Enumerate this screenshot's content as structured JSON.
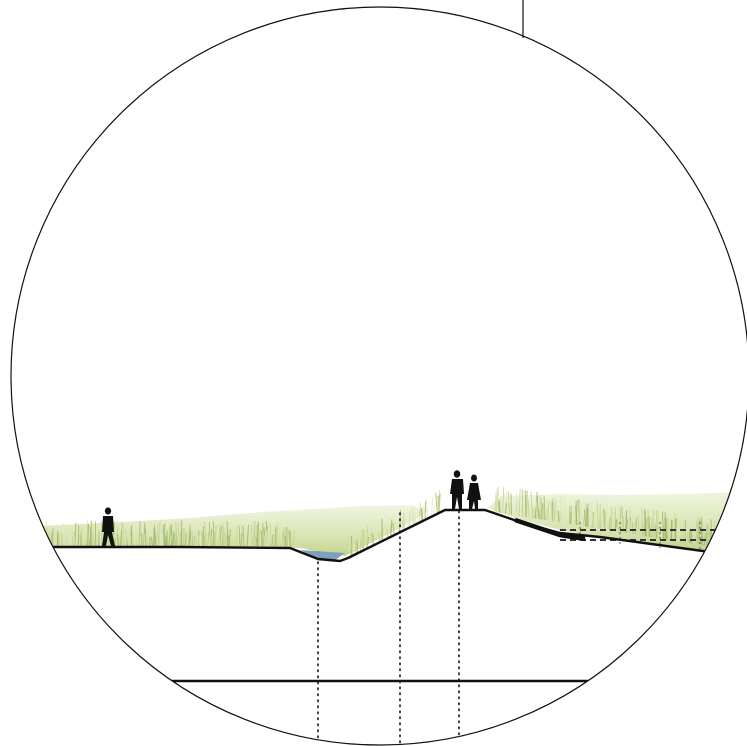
{
  "diagram": {
    "kind": "landscape-cross-section",
    "style": "line-drawing-in-circular-frame",
    "colors": {
      "background": "#ffffff",
      "stroke": "#111111",
      "grass_light": "#dfe8bf",
      "grass_mid": "#c3d48e",
      "grass_dark": "#9fb66a",
      "water": "#7f9fbf",
      "figure": "#111111"
    },
    "elements": [
      "circular-frame",
      "ground-profile",
      "embankment",
      "water-channel",
      "reed-vegetation",
      "human-figures",
      "dotted-guide-lines",
      "subsurface-baseline",
      "dashed-fence"
    ],
    "figure_count": 3
  }
}
